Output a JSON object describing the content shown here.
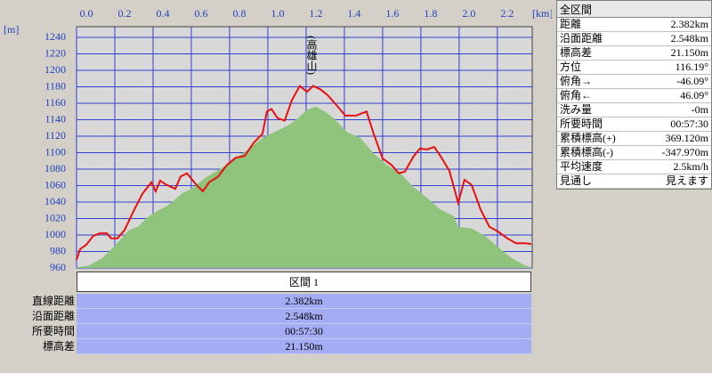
{
  "chart_data": {
    "type": "line",
    "xlabel": "[km]",
    "ylabel": "[m]",
    "annotation": "(高雄山)",
    "xlim": [
      0,
      2.382
    ],
    "ylim": [
      960,
      1253
    ],
    "xticks": [
      {
        "value": 0,
        "label": "0.0"
      },
      0.2,
      0.4,
      0.6,
      0.8,
      {
        "value": 1,
        "label": "1.0"
      },
      1.2,
      1.4,
      1.6,
      1.8,
      {
        "value": 2,
        "label": "2.0"
      },
      2.2
    ],
    "yticks": [
      960,
      980,
      1000,
      1020,
      1040,
      1060,
      1080,
      1100,
      1120,
      1140,
      1160,
      1180,
      1200,
      1220,
      1240
    ],
    "grid": true,
    "series": [
      {
        "color": "#e81010",
        "fill": false,
        "x": [
          0,
          0.019,
          0.05,
          0.088,
          0.121,
          0.158,
          0.181,
          0.214,
          0.251,
          0.298,
          0.344,
          0.391,
          0.414,
          0.437,
          0.47,
          0.516,
          0.544,
          0.577,
          0.623,
          0.66,
          0.693,
          0.74,
          0.786,
          0.833,
          0.879,
          0.926,
          0.972,
          0.995,
          1.019,
          1.051,
          1.088,
          1.126,
          1.167,
          1.205,
          1.237,
          1.274,
          1.312,
          1.358,
          1.405,
          1.46,
          1.516,
          1.553,
          1.6,
          1.647,
          1.684,
          1.716,
          1.763,
          1.795,
          1.833,
          1.87,
          1.902,
          1.949,
          1.995,
          2.028,
          2.065,
          2.112,
          2.158,
          2.205,
          2.251,
          2.298,
          2.344,
          2.377
        ],
        "values": [
          970,
          983,
          988,
          999,
          1002,
          1002,
          996,
          996,
          1006,
          1029,
          1050,
          1064,
          1053,
          1066,
          1061,
          1056,
          1071,
          1075,
          1062,
          1053,
          1064,
          1071,
          1085,
          1094,
          1096,
          1112,
          1123,
          1150,
          1153,
          1142,
          1139,
          1164,
          1181,
          1174,
          1181,
          1177,
          1170,
          1158,
          1145,
          1145,
          1150,
          1123,
          1093,
          1085,
          1075,
          1077,
          1096,
          1105,
          1104,
          1107,
          1096,
          1078,
          1039,
          1067,
          1061,
          1031,
          1010,
          1004,
          996,
          990,
          990,
          989
        ]
      },
      {
        "color": "#90c47c",
        "fill": true,
        "x": [
          0,
          0.065,
          0.135,
          0.205,
          0.274,
          0.321,
          0.367,
          0.414,
          0.484,
          0.553,
          0.6,
          0.67,
          0.763,
          0.833,
          0.902,
          0.972,
          1.042,
          1.112,
          1.158,
          1.205,
          1.251,
          1.298,
          1.344,
          1.414,
          1.484,
          1.553,
          1.623,
          1.693,
          1.763,
          1.833,
          1.902,
          1.972,
          1.995,
          2.065,
          2.135,
          2.205,
          2.274,
          2.344,
          2.377
        ],
        "values": [
          961,
          963,
          972,
          988,
          1006,
          1010,
          1021,
          1028,
          1037,
          1051,
          1056,
          1069,
          1082,
          1093,
          1105,
          1118,
          1126,
          1134,
          1142,
          1152,
          1156,
          1150,
          1142,
          1125,
          1118,
          1099,
          1085,
          1075,
          1058,
          1045,
          1031,
          1023,
          1010,
          1008,
          999,
          985,
          972,
          963,
          961
        ]
      }
    ]
  },
  "section": {
    "title": "区間 1",
    "rows": [
      [
        "直線距離",
        "2.382km"
      ],
      [
        "沿面距離",
        "2.548km"
      ],
      [
        "所要時間",
        "00:57:30"
      ],
      [
        "標高差",
        "21.150m"
      ]
    ]
  },
  "summary": {
    "title": "全区間",
    "rows": [
      [
        "距離",
        "2.382km"
      ],
      [
        "沿面距離",
        "2.548km"
      ],
      [
        "標高差",
        "21.150m"
      ],
      [
        "方位",
        "116.19°"
      ],
      [
        "俯角→",
        "-46.09°"
      ],
      [
        "俯角←",
        "46.09°"
      ],
      [
        "洗み量",
        "-0m"
      ],
      [
        "所要時間",
        "00:57:30"
      ],
      [
        "累積標高(+)",
        "369.120m"
      ],
      [
        "累積標高(-)",
        "-347.970m"
      ],
      [
        "平均速度",
        "2.5km/h"
      ],
      [
        "見通し",
        "見えます"
      ]
    ]
  }
}
